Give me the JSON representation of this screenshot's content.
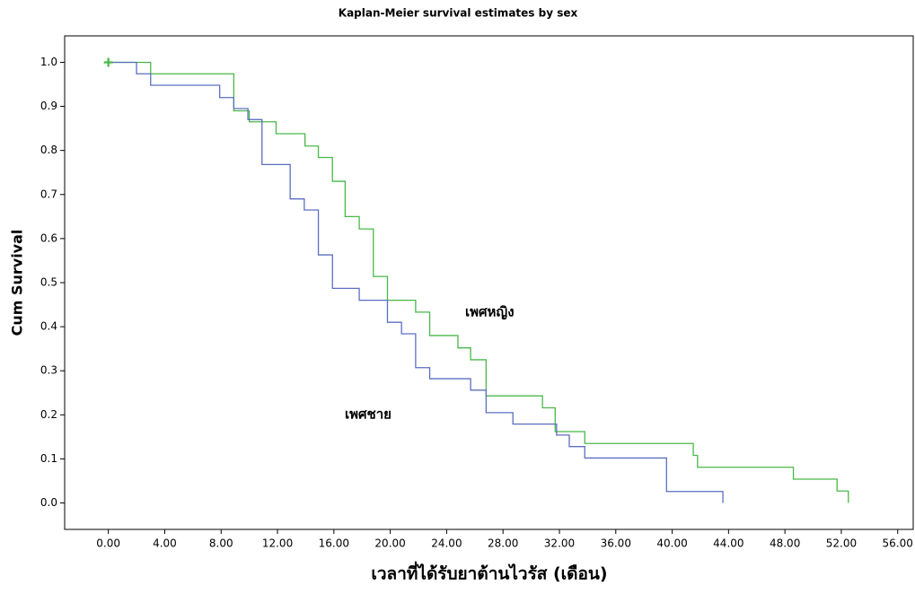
{
  "chart_data": {
    "type": "step",
    "title": "Kaplan-Meier survival estimates by sex",
    "x_label": "เวลาที่ได้รับยาต้านไวรัส (เดือน)",
    "y_label": "Cum Survival",
    "xlim": [
      -3.1,
      57.1
    ],
    "ylim": [
      -0.06,
      1.06
    ],
    "xticks": [
      {
        "value": 0,
        "label": "0.00"
      },
      {
        "value": 4,
        "label": "4.00"
      },
      {
        "value": 8,
        "label": "8.00"
      },
      {
        "value": 12,
        "label": "12.00"
      },
      {
        "value": 16,
        "label": "16.00"
      },
      {
        "value": 20,
        "label": "20.00"
      },
      {
        "value": 24,
        "label": "24.00"
      },
      {
        "value": 28,
        "label": "28.00"
      },
      {
        "value": 32,
        "label": "32.00"
      },
      {
        "value": 36,
        "label": "36.00"
      },
      {
        "value": 40,
        "label": "40.00"
      },
      {
        "value": 44,
        "label": "44.00"
      },
      {
        "value": 48,
        "label": "48.00"
      },
      {
        "value": 52,
        "label": "52.00"
      },
      {
        "value": 56,
        "label": "56.00"
      }
    ],
    "yticks": [
      {
        "value": 0,
        "label": "0.0"
      },
      0.1,
      0.2,
      0.3,
      0.4,
      0.5,
      0.6,
      0.7,
      0.8,
      0.9,
      {
        "value": 1,
        "label": "1.0"
      }
    ],
    "series": [
      {
        "name": "เพศหญิง",
        "color": "#47b947",
        "x": [
          0,
          3,
          8.9,
          10,
          11.9,
          13.95,
          14.9,
          15.9,
          16.8,
          17.8,
          18.8,
          19.8,
          21.8,
          22.8,
          24.8,
          25.7,
          26.8,
          30.8,
          31.7,
          33.8,
          41.5,
          41.8,
          48.6,
          51.7,
          52.5
        ],
        "values": [
          1.0,
          0.974,
          0.89,
          0.865,
          0.838,
          0.81,
          0.784,
          0.73,
          0.65,
          0.622,
          0.514,
          0.46,
          0.433,
          0.38,
          0.352,
          0.325,
          0.243,
          0.216,
          0.162,
          0.135,
          0.108,
          0.081,
          0.054,
          0.027,
          0
        ]
      },
      {
        "name": "เพศชาย",
        "color": "#5b6fc2",
        "x": [
          0,
          2,
          3,
          7.9,
          8.9,
          9.9,
          10.9,
          12.9,
          13.9,
          14.9,
          15.9,
          17.8,
          19.8,
          20.8,
          21.8,
          22.8,
          25.7,
          26.8,
          28.7,
          31.8,
          32.7,
          33.8,
          39.6,
          43.6
        ],
        "values": [
          1.0,
          0.974,
          0.948,
          0.92,
          0.895,
          0.87,
          0.768,
          0.69,
          0.665,
          0.563,
          0.487,
          0.46,
          0.41,
          0.384,
          0.307,
          0.282,
          0.256,
          0.205,
          0.179,
          0.154,
          0.128,
          0.102,
          0.026,
          0
        ]
      }
    ]
  }
}
